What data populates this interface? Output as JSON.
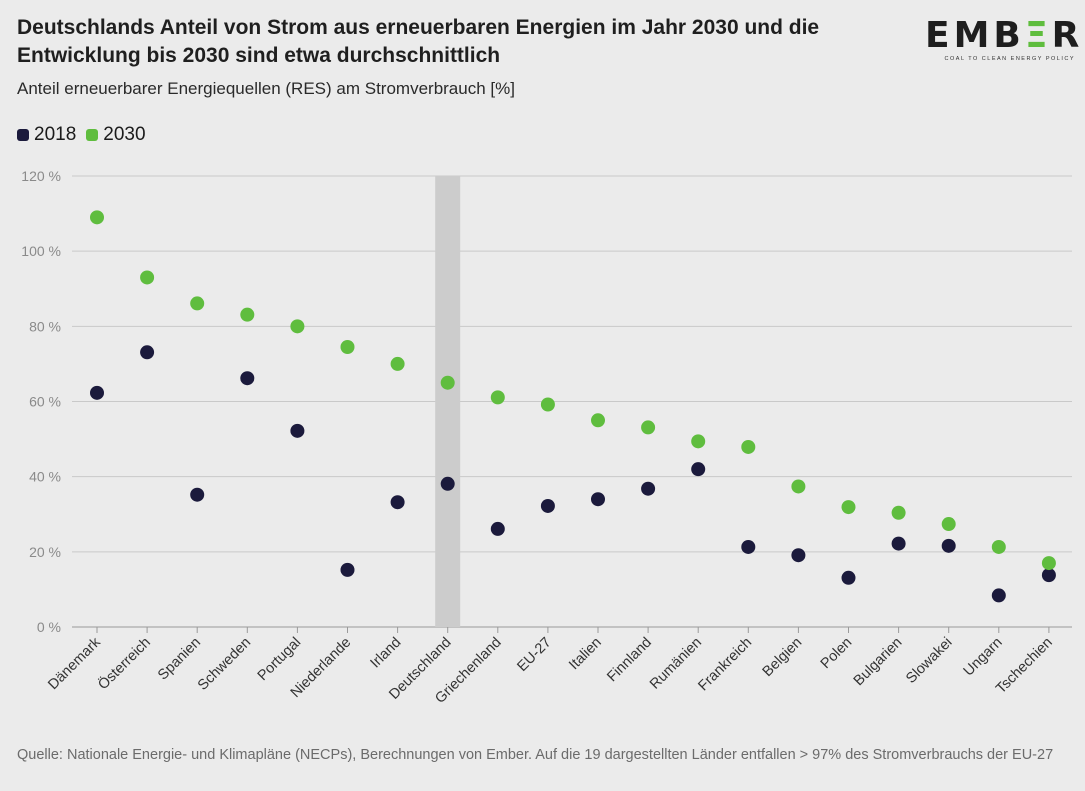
{
  "header": {
    "title": "Deutschlands Anteil von Strom aus erneuerbaren Energien im Jahr 2030 und die Entwicklung bis 2030 sind etwa durchschnittlich",
    "subtitle": "Anteil erneuerbarer Energiequellen (RES) am Stromverbrauch [%]"
  },
  "logo": {
    "word_part1": "EMB",
    "word_e": "Ξ",
    "word_part2": "R",
    "tagline": "COAL TO CLEAN ENERGY POLICY"
  },
  "footer": {
    "source": "Quelle: Nationale Energie- und Klimapläne (NECPs), Berechnungen von Ember. Auf die 19 dargestellten Länder entfallen > 97% des Stromverbrauchs der EU-27"
  },
  "chart_data": {
    "type": "scatter",
    "title": "Deutschlands Anteil von Strom aus erneuerbaren Energien im Jahr 2030 und die Entwicklung bis 2030 sind etwa durchschnittlich",
    "ylabel": "Anteil erneuerbarer Energiequellen (RES) am Stromverbrauch [%]",
    "ylim": [
      0,
      120
    ],
    "yticks": [
      0,
      20,
      40,
      60,
      80,
      100,
      120
    ],
    "ytick_labels": [
      "0 %",
      "20 %",
      "40 %",
      "60 %",
      "80 %",
      "100 %",
      "120 %"
    ],
    "grid": true,
    "legend_position": "top-left",
    "highlight_category": "Deutschland",
    "highlight_color": "#cccccc",
    "categories": [
      "Dänemark",
      "Österreich",
      "Spanien",
      "Schweden",
      "Portugal",
      "Niederlande",
      "Irland",
      "Deutschland",
      "Griechenland",
      "EU-27",
      "Italien",
      "Finnland",
      "Rumänien",
      "Frankreich",
      "Belgien",
      "Polen",
      "Bulgarien",
      "Slowakei",
      "Ungarn",
      "Tschechien"
    ],
    "series": [
      {
        "name": "2018",
        "color": "#1b1a3c",
        "values": [
          62.3,
          73.1,
          35.2,
          66.2,
          52.2,
          15.2,
          33.2,
          38.1,
          26.1,
          32.2,
          34.0,
          36.8,
          42.0,
          21.3,
          19.1,
          13.1,
          22.2,
          21.6,
          8.4,
          13.8
        ]
      },
      {
        "name": "2030",
        "color": "#5fbd3e",
        "values": [
          109.0,
          93.0,
          86.1,
          83.1,
          80.0,
          74.5,
          70.0,
          65.0,
          61.1,
          59.2,
          55.0,
          53.1,
          49.4,
          47.9,
          37.4,
          31.9,
          30.4,
          27.4,
          21.3,
          17.0
        ]
      }
    ]
  }
}
